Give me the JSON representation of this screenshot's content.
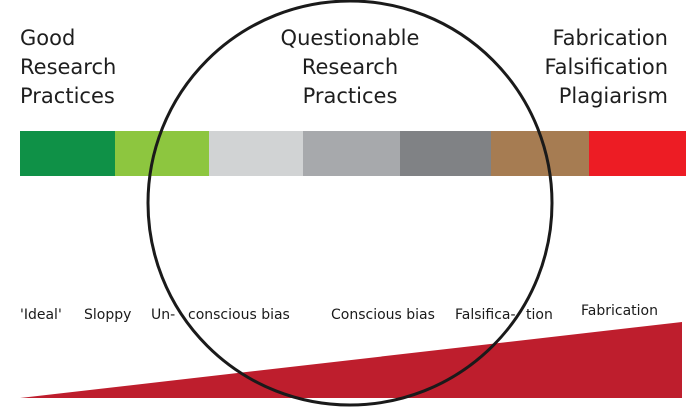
{
  "headings": {
    "left": [
      "Good",
      "Research",
      "Practices"
    ],
    "center": [
      "Questionable",
      "Research",
      "Practices"
    ],
    "right": [
      "Fabrication",
      "Falsification",
      "Plagiarism"
    ]
  },
  "spectrum": {
    "segments": [
      {
        "color": "#0f9147"
      },
      {
        "color": "#8dc63f"
      },
      {
        "color": "#d1d3d4"
      },
      {
        "color": "#a7a9ac"
      },
      {
        "color": "#808285"
      },
      {
        "color": "#a67c52"
      },
      {
        "color": "#ed1c24"
      }
    ]
  },
  "scale_labels": [
    "'Ideal'",
    "Sloppy",
    "Un-",
    "conscious bias",
    "Conscious bias",
    "Falsifica-",
    "tion",
    "Fabrication"
  ],
  "colors": {
    "wedge": "#be1e2d",
    "circle_stroke": "#1a1a1a",
    "text": "#1e1e1e"
  }
}
